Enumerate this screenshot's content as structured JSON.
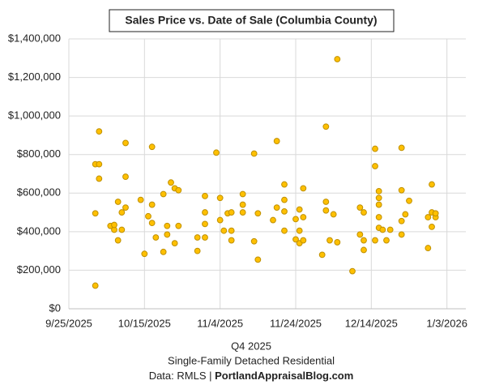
{
  "chart_data": {
    "type": "scatter",
    "title": "Sales Price vs. Date of Sale (Columbia County)",
    "subtitle_lines": [
      "Q4 2025",
      "Single-Family Detached Residential"
    ],
    "source": "Data: RMLS |",
    "source_site": "PortlandAppraisalBlog.com",
    "marker_fill": "#ffc000",
    "marker_edge": "#bf9000",
    "grid": true,
    "xlim": [
      "2025-09-25",
      "2026-01-08"
    ],
    "xticks": [
      {
        "value": "2025-09-25",
        "label": "9/25/2025"
      },
      {
        "value": "2025-10-15",
        "label": "10/15/2025"
      },
      {
        "value": "2025-11-04",
        "label": "11/4/2025"
      },
      {
        "value": "2025-11-24",
        "label": "11/24/2025"
      },
      {
        "value": "2025-12-14",
        "label": "12/14/2025"
      },
      {
        "value": "2026-01-03",
        "label": "1/3/2026"
      }
    ],
    "ylim": [
      0,
      1400000
    ],
    "yticks": [
      {
        "value": 0,
        "label": "$0"
      },
      {
        "value": 200000,
        "label": "$200,000"
      },
      {
        "value": 400000,
        "label": "$400,000"
      },
      {
        "value": 600000,
        "label": "$600,000"
      },
      {
        "value": 800000,
        "label": "$800,000"
      },
      {
        "value": 1000000,
        "label": "$1,000,000"
      },
      {
        "value": 1200000,
        "label": "$1,200,000"
      },
      {
        "value": 1400000,
        "label": "$1,400,000"
      }
    ],
    "x": [
      "2025-10-02",
      "2025-10-02",
      "2025-10-03",
      "2025-10-03",
      "2025-10-03",
      "2025-10-02",
      "2025-10-06",
      "2025-10-07",
      "2025-10-07",
      "2025-10-08",
      "2025-10-08",
      "2025-10-09",
      "2025-10-09",
      "2025-10-10",
      "2025-10-10",
      "2025-10-10",
      "2025-10-14",
      "2025-10-15",
      "2025-10-17",
      "2025-10-17",
      "2025-10-16",
      "2025-10-17",
      "2025-10-18",
      "2025-10-20",
      "2025-10-20",
      "2025-10-21",
      "2025-10-21",
      "2025-10-22",
      "2025-10-23",
      "2025-10-23",
      "2025-10-24",
      "2025-10-24",
      "2025-10-29",
      "2025-10-29",
      "2025-10-31",
      "2025-10-31",
      "2025-10-31",
      "2025-10-31",
      "2025-11-03",
      "2025-11-04",
      "2025-11-04",
      "2025-11-05",
      "2025-11-06",
      "2025-11-07",
      "2025-11-07",
      "2025-11-07",
      "2025-11-10",
      "2025-11-10",
      "2025-11-10",
      "2025-11-13",
      "2025-11-13",
      "2025-11-14",
      "2025-11-14",
      "2025-11-18",
      "2025-11-19",
      "2025-11-19",
      "2025-11-21",
      "2025-11-21",
      "2025-11-21",
      "2025-11-21",
      "2025-11-24",
      "2025-11-24",
      "2025-11-25",
      "2025-11-25",
      "2025-11-25",
      "2025-11-26",
      "2025-11-26",
      "2025-11-26",
      "2025-12-01",
      "2025-12-02",
      "2025-12-02",
      "2025-12-02",
      "2025-12-03",
      "2025-12-04",
      "2025-12-05",
      "2025-12-05",
      "2025-12-09",
      "2025-12-11",
      "2025-12-11",
      "2025-12-12",
      "2025-12-12",
      "2025-12-12",
      "2025-12-15",
      "2025-12-15",
      "2025-12-15",
      "2025-12-16",
      "2025-12-16",
      "2025-12-16",
      "2025-12-16",
      "2025-12-16",
      "2025-12-17",
      "2025-12-18",
      "2025-12-19",
      "2025-12-22",
      "2025-12-22",
      "2025-12-22",
      "2025-12-22",
      "2025-12-23",
      "2025-12-24",
      "2025-12-29",
      "2025-12-29",
      "2025-12-30",
      "2025-12-30",
      "2025-12-30",
      "2025-12-31",
      "2025-12-31"
    ],
    "y": [
      495000,
      750000,
      750000,
      920000,
      675000,
      120000,
      430000,
      410000,
      435000,
      555000,
      355000,
      410000,
      500000,
      525000,
      685000,
      860000,
      565000,
      285000,
      840000,
      540000,
      480000,
      445000,
      370000,
      295000,
      595000,
      385000,
      430000,
      655000,
      340000,
      625000,
      615000,
      430000,
      300000,
      370000,
      585000,
      370000,
      440000,
      500000,
      810000,
      460000,
      575000,
      405000,
      495000,
      405000,
      355000,
      500000,
      595000,
      540000,
      500000,
      805000,
      350000,
      255000,
      495000,
      460000,
      525000,
      870000,
      645000,
      565000,
      505000,
      405000,
      465000,
      360000,
      340000,
      515000,
      405000,
      355000,
      475000,
      625000,
      280000,
      945000,
      555000,
      510000,
      355000,
      490000,
      1295000,
      345000,
      195000,
      525000,
      385000,
      355000,
      305000,
      500000,
      830000,
      740000,
      355000,
      475000,
      610000,
      575000,
      540000,
      420000,
      410000,
      355000,
      410000,
      615000,
      835000,
      385000,
      455000,
      490000,
      560000,
      315000,
      475000,
      645000,
      425000,
      500000,
      475000,
      495000
    ]
  }
}
